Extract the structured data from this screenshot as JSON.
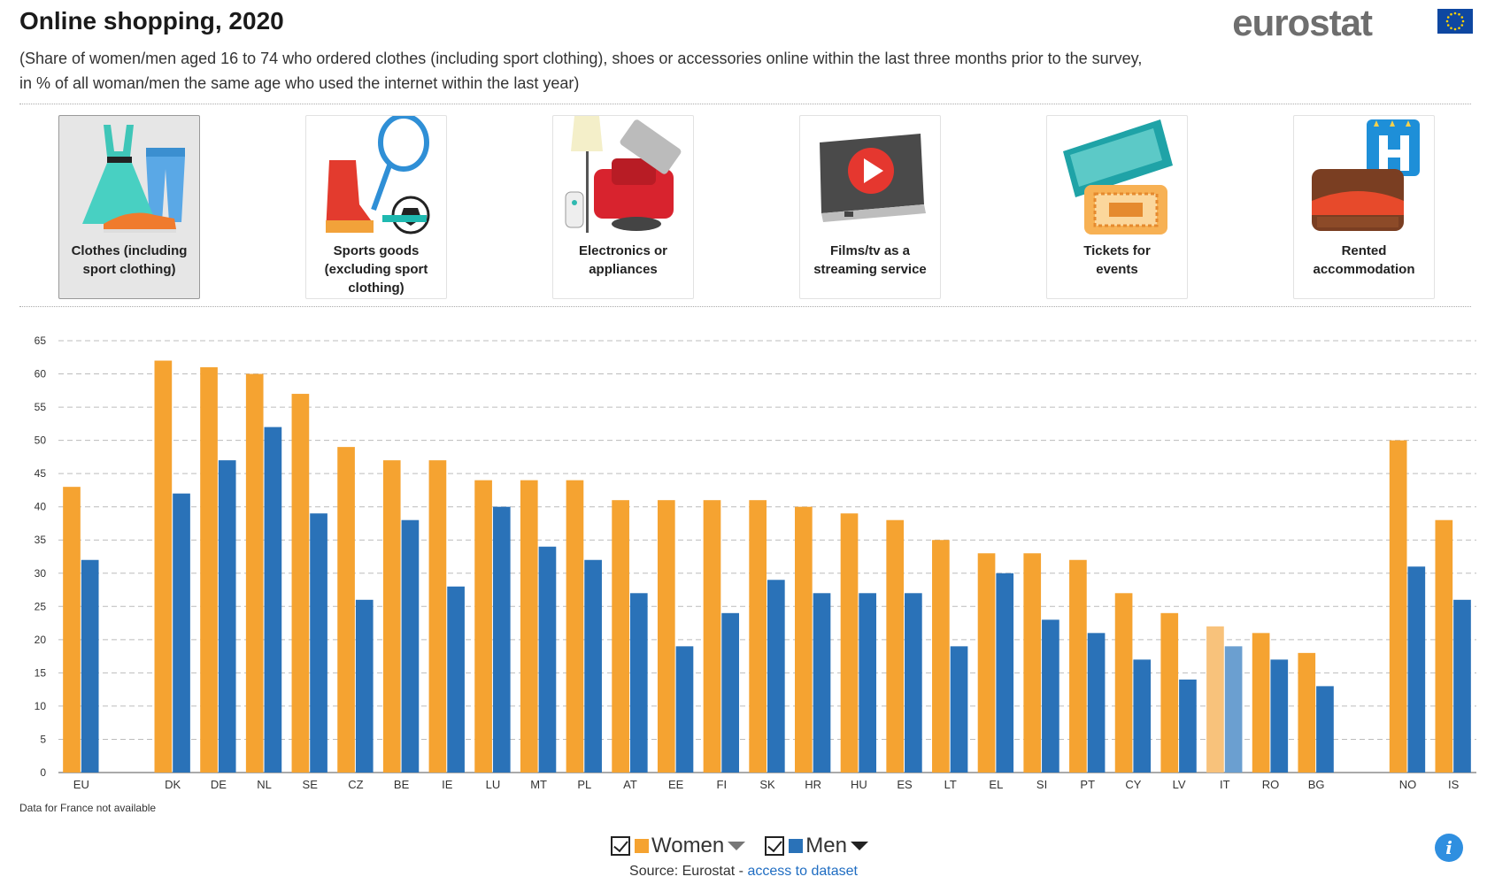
{
  "title": "Online shopping, 2020",
  "logo": "eurostat",
  "subtitle_line1": "(Share of women/men aged 16 to 74 who ordered clothes (including sport clothing), shoes or accessories online within the last three months prior to the survey,",
  "subtitle_line2": "in % of all woman/men the same age who used the internet within the last year)",
  "tiles": [
    {
      "line1": "Clothes (including",
      "line2": "sport clothing)",
      "line3": "",
      "icon": "clothes-icon"
    },
    {
      "line1": "Sports goods",
      "line2": "(excluding sport",
      "line3": "clothing)",
      "icon": "sports-goods-icon"
    },
    {
      "line1": "Electronics or",
      "line2": "appliances",
      "line3": "",
      "icon": "electronics-icon"
    },
    {
      "line1": "Films/tv as a",
      "line2": "streaming service",
      "line3": "",
      "icon": "streaming-icon"
    },
    {
      "line1": "Tickets for",
      "line2": "events",
      "line3": "",
      "icon": "ticket-icon"
    },
    {
      "line1": "Rented",
      "line2": "accommodation",
      "line3": "",
      "icon": "hotel-icon"
    }
  ],
  "footnote": "Data for France not available",
  "legend": {
    "women": "Women",
    "men": "Men"
  },
  "source": {
    "prefix": "Source: Eurostat - ",
    "link": "access to dataset"
  },
  "info_label": "i",
  "colors": {
    "women": "#f5a331",
    "men": "#2a72b8",
    "women_hl": "#f8c27b",
    "men_hl": "#6b9fd0"
  },
  "chart_data": {
    "type": "bar",
    "title": "Online shopping, 2020",
    "categories": [
      "EU",
      "",
      "DK",
      "DE",
      "NL",
      "SE",
      "CZ",
      "BE",
      "IE",
      "LU",
      "MT",
      "PL",
      "AT",
      "EE",
      "FI",
      "SK",
      "HR",
      "HU",
      "ES",
      "LT",
      "EL",
      "SI",
      "PT",
      "CY",
      "LV",
      "IT",
      "RO",
      "BG",
      "",
      "NO",
      "IS"
    ],
    "series": [
      {
        "name": "Women",
        "values": [
          43,
          null,
          62,
          61,
          60,
          57,
          49,
          47,
          47,
          44,
          44,
          44,
          41,
          41,
          41,
          41,
          40,
          39,
          38,
          35,
          33,
          33,
          32,
          27,
          24,
          22,
          21,
          18,
          null,
          50,
          38
        ]
      },
      {
        "name": "Men",
        "values": [
          32,
          null,
          42,
          47,
          52,
          39,
          26,
          38,
          28,
          40,
          34,
          32,
          27,
          19,
          24,
          29,
          27,
          27,
          27,
          19,
          30,
          23,
          21,
          17,
          14,
          19,
          17,
          13,
          null,
          31,
          26
        ]
      }
    ],
    "highlighted_category": "IT",
    "yticks": [
      0,
      5,
      10,
      15,
      20,
      25,
      30,
      35,
      40,
      45,
      50,
      55,
      60,
      65
    ],
    "ylim": [
      0,
      65
    ],
    "grid": true,
    "legend_position": "bottom-center"
  }
}
